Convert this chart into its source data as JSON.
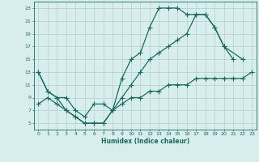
{
  "xlabel": "Humidex (Indice chaleur)",
  "bg_color": "#d8eeed",
  "grid_color": "#b0cfcf",
  "line_color": "#1a6b60",
  "xlim": [
    -0.5,
    23.5
  ],
  "ylim": [
    4,
    24
  ],
  "xticks": [
    0,
    1,
    2,
    3,
    4,
    5,
    6,
    7,
    8,
    9,
    10,
    11,
    12,
    13,
    14,
    15,
    16,
    17,
    18,
    19,
    20,
    21,
    22,
    23
  ],
  "yticks": [
    5,
    7,
    9,
    11,
    13,
    15,
    17,
    19,
    21,
    23
  ],
  "line1_x": [
    0,
    1,
    2,
    3,
    4,
    5,
    6,
    7,
    8,
    9,
    10,
    11,
    12,
    13,
    14,
    15,
    16,
    17,
    18,
    19,
    20,
    21
  ],
  "line1_y": [
    13,
    10,
    9,
    7,
    6,
    5,
    5,
    5,
    7,
    12,
    15,
    16,
    20,
    23,
    23,
    23,
    22,
    22,
    22,
    20,
    17,
    15
  ],
  "line2_x": [
    0,
    1,
    2,
    3,
    4,
    5,
    6,
    7,
    8,
    9,
    10,
    11,
    12,
    13,
    14,
    15,
    16,
    17,
    18,
    19,
    20,
    22
  ],
  "line2_y": [
    13,
    10,
    9,
    9,
    7,
    6,
    8,
    8,
    7,
    9,
    11,
    13,
    15,
    16,
    17,
    18,
    19,
    22,
    22,
    20,
    17,
    15
  ],
  "line3_x": [
    0,
    1,
    2,
    3,
    4,
    5,
    6,
    7,
    8,
    9,
    10,
    11,
    12,
    13,
    14,
    15,
    16,
    17,
    18,
    19,
    20,
    21,
    22,
    23
  ],
  "line3_y": [
    8,
    9,
    8,
    7,
    6,
    5,
    5,
    5,
    7,
    8,
    9,
    9,
    10,
    10,
    11,
    11,
    11,
    12,
    12,
    12,
    12,
    12,
    12,
    13
  ]
}
